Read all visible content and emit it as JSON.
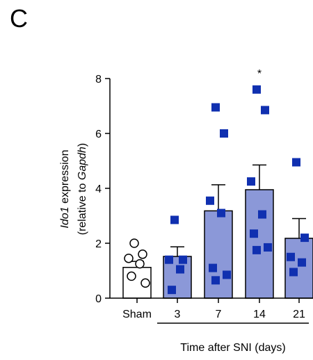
{
  "panel_label": "C",
  "chart_data": {
    "type": "bar",
    "categories": [
      "Sham",
      "3",
      "7",
      "14",
      "21"
    ],
    "values": [
      1.12,
      1.52,
      3.18,
      3.95,
      2.18
    ],
    "sem": [
      0.22,
      0.35,
      0.95,
      0.9,
      0.72
    ],
    "points": [
      [
        2.0,
        1.6,
        1.45,
        1.25,
        0.8,
        0.55
      ],
      [
        2.85,
        1.4,
        1.4,
        1.05,
        0.3
      ],
      [
        6.95,
        6.0,
        3.55,
        3.1,
        1.1,
        0.85,
        0.65
      ],
      [
        7.6,
        6.85,
        4.25,
        3.05,
        2.35,
        1.85,
        1.75
      ],
      [
        4.95,
        2.2,
        1.5,
        1.3,
        0.95
      ]
    ],
    "significance": [
      "",
      "",
      "",
      "*",
      ""
    ],
    "ylabel_italic": "Ido1",
    "ylabel_rest": " expression",
    "ylabel2_pre": "(relative to ",
    "ylabel2_italic": "Gapdh",
    "ylabel2_post": ")",
    "xlabel": "Time after SNI (days)",
    "ylim": [
      0,
      8
    ],
    "yticks": [
      0,
      2,
      4,
      6,
      8
    ],
    "colors": {
      "sham_bar": "#ffffff",
      "sni_bar": "#8b98d8",
      "sni_point": "#1030b0",
      "axis": "#000000"
    },
    "grid": false
  }
}
